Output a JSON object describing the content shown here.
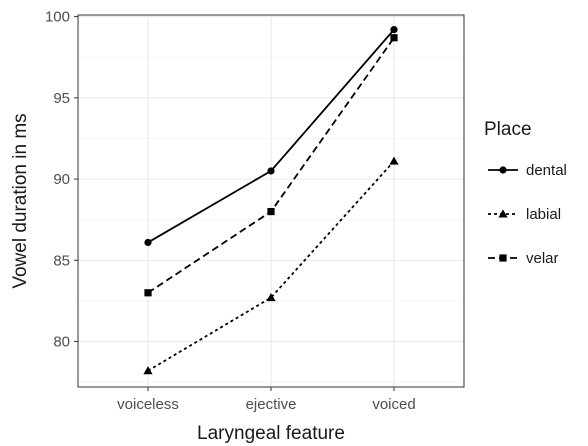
{
  "chart_data": {
    "type": "line",
    "categories": [
      "voiceless",
      "ejective",
      "voiced"
    ],
    "series": [
      {
        "name": "dental",
        "values": [
          86.1,
          90.5,
          99.2
        ],
        "marker": "circle",
        "dash": "solid"
      },
      {
        "name": "labial",
        "values": [
          78.2,
          82.7,
          91.1
        ],
        "marker": "triangle",
        "dash": "dotted"
      },
      {
        "name": "velar",
        "values": [
          83.0,
          88.0,
          98.7
        ],
        "marker": "square",
        "dash": "dashed"
      }
    ],
    "xlabel": "Laryngeal feature",
    "ylabel": "Vowel duration in ms",
    "ylim": [
      77.2,
      100.1
    ],
    "yticks": [
      80,
      85,
      90,
      95,
      100
    ],
    "legend_title": "Place",
    "legend_position": "right",
    "grid": true,
    "colors": {
      "line": "#000000",
      "grid_major": "#ebebeb",
      "grid_minor": "#f5f5f5",
      "panel_border": "#333333"
    }
  }
}
